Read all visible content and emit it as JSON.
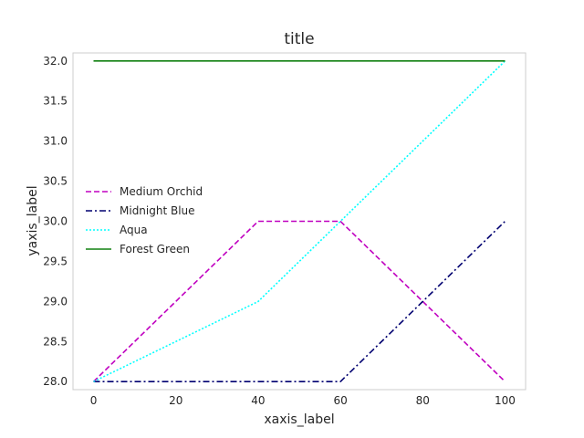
{
  "chart_data": {
    "type": "line",
    "title": "title",
    "xlabel": "xaxis_label",
    "ylabel": "yaxis_label",
    "x": [
      0,
      40,
      60,
      100
    ],
    "xlim": [
      -5,
      105
    ],
    "ylim": [
      27.9,
      32.1
    ],
    "xticks": [
      0,
      20,
      40,
      60,
      80,
      100
    ],
    "yticks": [
      28.0,
      28.5,
      29.0,
      29.5,
      30.0,
      30.5,
      31.0,
      31.5,
      32.0
    ],
    "grid": false,
    "legend_position": "center-left",
    "series": [
      {
        "name": "Medium Orchid",
        "values": [
          28,
          30,
          30,
          28
        ],
        "color": "#C000C0",
        "style": "dashed"
      },
      {
        "name": "Midnight Blue",
        "values": [
          28,
          28,
          28,
          30
        ],
        "color": "#000070",
        "style": "dashdot"
      },
      {
        "name": "Aqua",
        "values": [
          28,
          29,
          30,
          32
        ],
        "color": "#00FFFF",
        "style": "dotted"
      },
      {
        "name": "Forest Green",
        "values": [
          32,
          32,
          32,
          32
        ],
        "color": "#108010",
        "style": "solid"
      }
    ]
  }
}
